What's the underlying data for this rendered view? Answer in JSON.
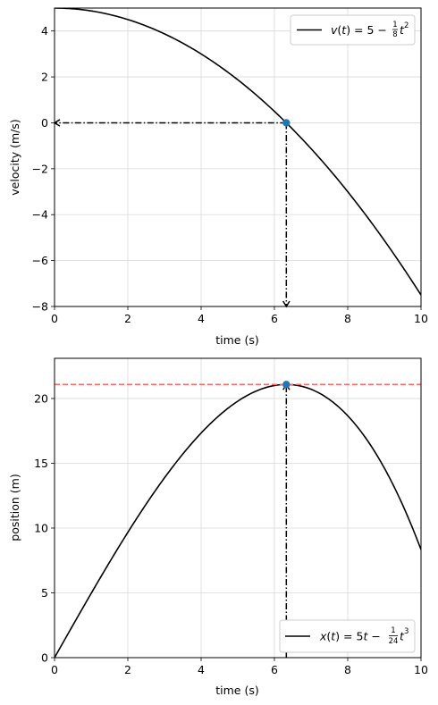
{
  "chart_data": [
    {
      "type": "line",
      "xlabel": "time (s)",
      "ylabel": "velocity (m/s)",
      "xlim": [
        0,
        10
      ],
      "ylim": [
        -8,
        5
      ],
      "xticks": [
        0,
        2,
        4,
        6,
        8,
        10
      ],
      "yticks": [
        -8,
        -6,
        -4,
        -2,
        0,
        2,
        4
      ],
      "grid": true,
      "legend_position": "top-right",
      "series": [
        {
          "name": "v(t) = 5 − (1/8)t²",
          "formula": "5 - t*t/8",
          "x_range": [
            0,
            10
          ],
          "color": "#000000"
        }
      ],
      "marker": {
        "x": 6.325,
        "y": 0,
        "color": "#1f77b4"
      },
      "arrows": [
        {
          "from": [
            6.325,
            0
          ],
          "to": [
            0,
            0
          ],
          "style": "dash-dot"
        },
        {
          "from": [
            6.325,
            0
          ],
          "to": [
            6.325,
            -8
          ],
          "style": "dash-dot"
        }
      ]
    },
    {
      "type": "line",
      "xlabel": "time (s)",
      "ylabel": "position (m)",
      "xlim": [
        0,
        10
      ],
      "ylim": [
        0,
        23.1
      ],
      "xticks": [
        0,
        2,
        4,
        6,
        8,
        10
      ],
      "yticks": [
        0,
        5,
        10,
        15,
        20
      ],
      "grid": true,
      "legend_position": "bottom-right",
      "series": [
        {
          "name": "x(t) = 5t − (1/24)t³",
          "formula": "5*t - t*t*t/24",
          "x_range": [
            0,
            10
          ],
          "color": "#000000"
        }
      ],
      "marker": {
        "x": 6.325,
        "y": 21.08,
        "color": "#1f77b4"
      },
      "hline": {
        "y": 21.08,
        "color": "#ff6666",
        "style": "dashed"
      },
      "arrows": [
        {
          "from": [
            6.325,
            0
          ],
          "to": [
            6.325,
            21.08
          ],
          "style": "dash-dot"
        }
      ]
    }
  ],
  "legends": {
    "top": {
      "prefix": "v",
      "mid": "(",
      "var": "t",
      "post": ") = 5 − ",
      "num": "1",
      "den": "8",
      "tail": "t",
      "exp": "2"
    },
    "bottom": {
      "prefix": "x",
      "mid": "(",
      "var": "t",
      "post": ") = 5",
      "var2": "t",
      "minus": " − ",
      "num": "1",
      "den": "24",
      "tail": "t",
      "exp": "3"
    }
  }
}
